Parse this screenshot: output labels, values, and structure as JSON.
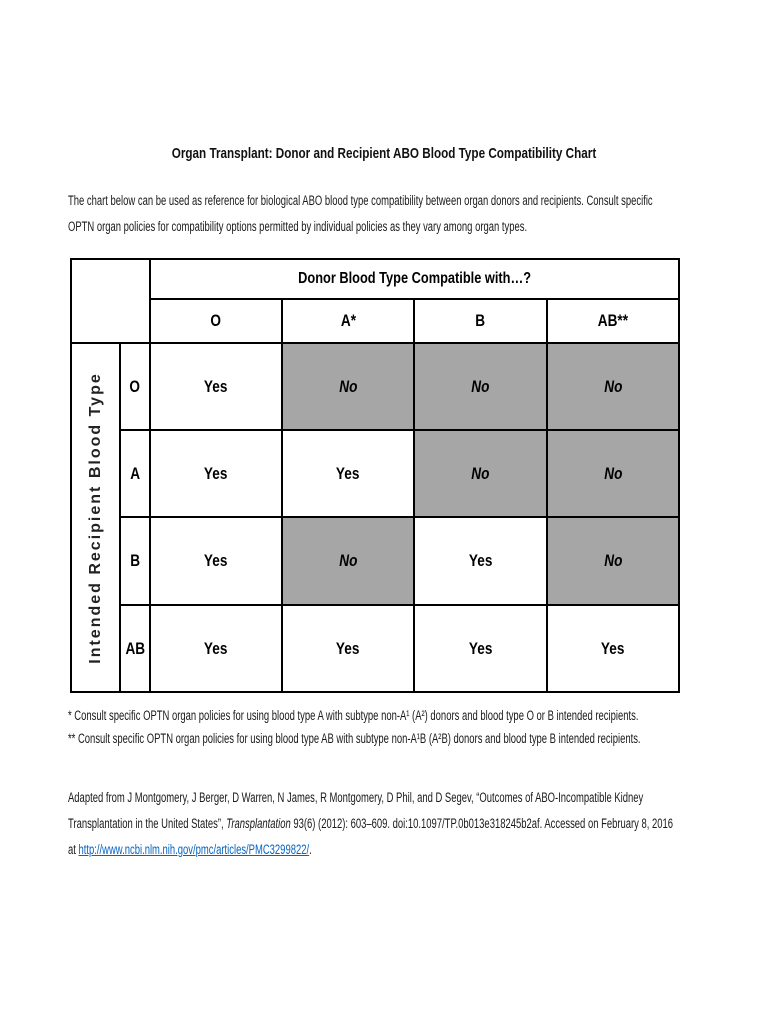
{
  "title": "Organ Transplant: Donor and Recipient ABO Blood Type Compatibility Chart",
  "intro": {
    "line1": "The chart below can be used as reference for biological ABO blood type compatibility between organ donors and recipients. Consult specific",
    "line2": "OPTN organ policies for compatibility options permitted by individual policies as they vary among organ types."
  },
  "chart_data": {
    "type": "table",
    "donor_header": "Donor Blood Type Compatible with…?",
    "donor_columns": [
      "O",
      "A*",
      "B",
      "AB**"
    ],
    "recipient_axis_label": "Intended Recipient Blood Type",
    "rows": [
      {
        "label": "O",
        "cells": [
          "Yes",
          "No",
          "No",
          "No"
        ]
      },
      {
        "label": "A",
        "cells": [
          "Yes",
          "Yes",
          "No",
          "No"
        ]
      },
      {
        "label": "B",
        "cells": [
          "Yes",
          "No",
          "Yes",
          "No"
        ]
      },
      {
        "label": "AB",
        "cells": [
          "Yes",
          "Yes",
          "Yes",
          "Yes"
        ]
      }
    ],
    "no_cell_fill": "#a6a6a6",
    "yes_cell_fill": "#ffffff",
    "border_color": "#000000"
  },
  "footnotes": {
    "line1": "* Consult specific OPTN organ policies for using blood type A with subtype non-A¹ (A²) donors and blood type O or B intended recipients.",
    "line2": "** Consult specific OPTN organ policies for using blood type AB with subtype non-A¹B (A²B) donors and blood type B intended recipients."
  },
  "citation": {
    "line1": "Adapted from J Montgomery, J Berger, D Warren, N James, R Montgomery, D Phil, and D Segev, “Outcomes of ABO-Incompatible Kidney",
    "line2_pre": "Transplantation in the United States”, ",
    "line2_italic": "Transplantation",
    "line2_post": " 93(6) (2012): 603–609. doi:10.1097/TP.0b013e318245b2af. Accessed on February 8, 2016",
    "line3_pre": "at ",
    "line3_link": "http://www.ncbi.nlm.nih.gov/pmc/articles/PMC3299822/",
    "line3_end": ".",
    "link_color": "#0563c1"
  }
}
